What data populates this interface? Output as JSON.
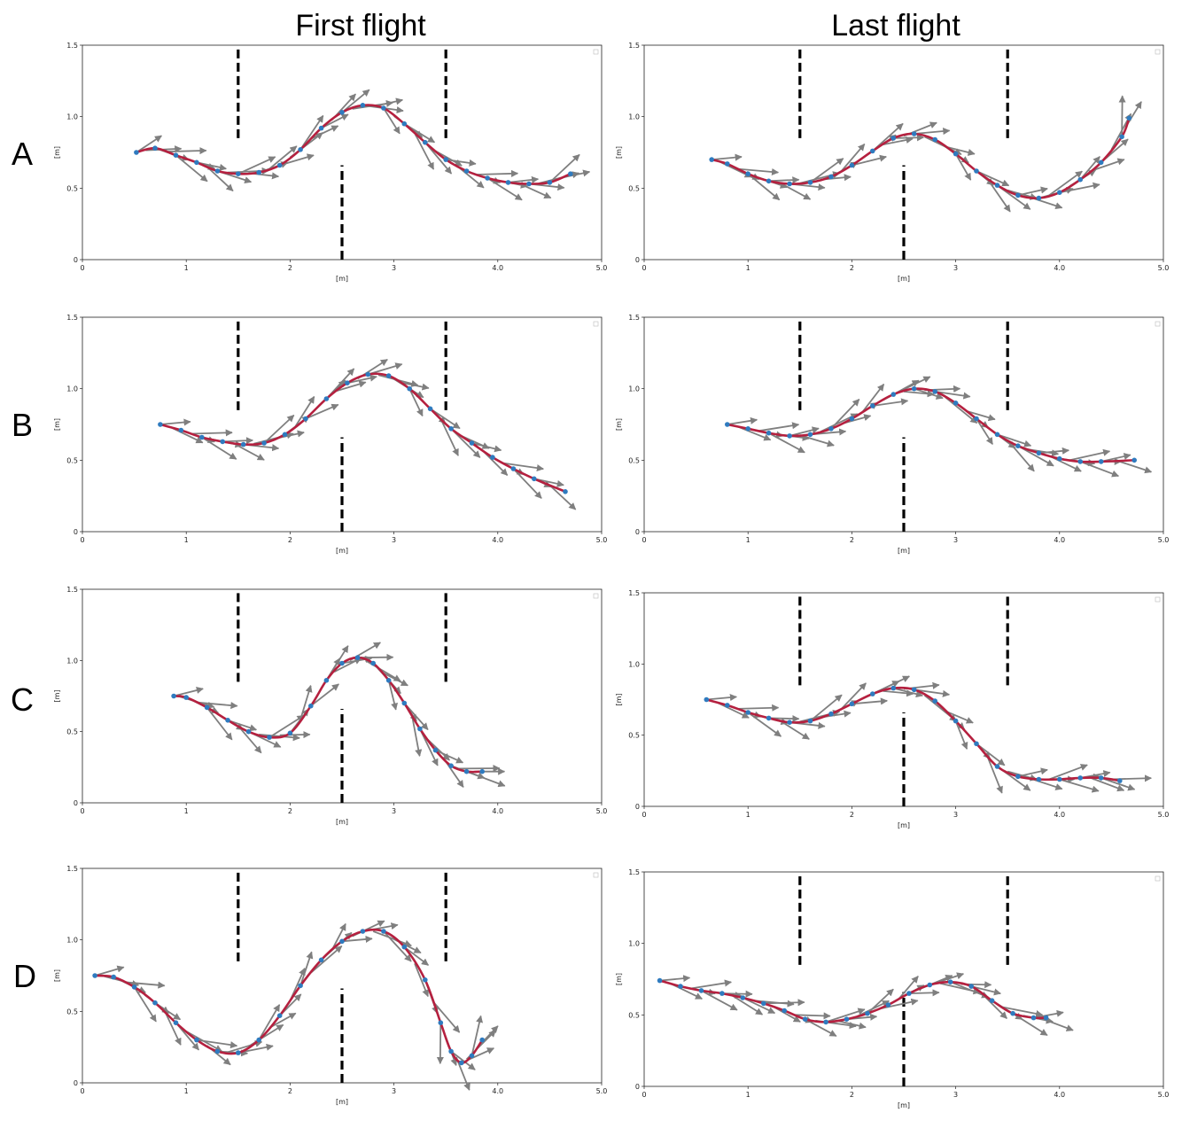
{
  "titles": {
    "col1": "First flight",
    "col2": "Last flight"
  },
  "rows": [
    "A",
    "B",
    "C",
    "D"
  ],
  "chart_data": [
    {
      "type": "line",
      "panel": "A - First flight",
      "xlabel": "[m]",
      "ylabel": "[m]",
      "xlim": [
        0,
        5.0
      ],
      "ylim": [
        0,
        1.5
      ],
      "xticks": [
        "0",
        "1",
        "2",
        "3",
        "4.0",
        "5.0"
      ],
      "yticks": [
        "0",
        "0.5",
        "1.0",
        "1.5"
      ],
      "obstacles": [
        {
          "x": 1.5,
          "y": [
            0.85,
            1.5
          ]
        },
        {
          "x": 2.5,
          "y": [
            0,
            0.66
          ]
        },
        {
          "x": 3.5,
          "y": [
            0.85,
            1.5
          ]
        }
      ],
      "trajectory": {
        "x": [
          0.52,
          0.7,
          0.9,
          1.1,
          1.3,
          1.5,
          1.7,
          1.9,
          2.1,
          2.3,
          2.5,
          2.7,
          2.9,
          3.1,
          3.3,
          3.5,
          3.7,
          3.9,
          4.1,
          4.3,
          4.5,
          4.7
        ],
        "y": [
          0.75,
          0.78,
          0.73,
          0.68,
          0.62,
          0.6,
          0.61,
          0.66,
          0.77,
          0.92,
          1.03,
          1.08,
          1.06,
          0.95,
          0.82,
          0.7,
          0.62,
          0.57,
          0.54,
          0.53,
          0.54,
          0.6
        ]
      }
    },
    {
      "type": "line",
      "panel": "A - Last flight",
      "xlabel": "[m]",
      "ylabel": "[m]",
      "xlim": [
        0,
        5.0
      ],
      "ylim": [
        0,
        1.5
      ],
      "xticks": [
        "0",
        "1",
        "2",
        "3",
        "4.0",
        "5.0"
      ],
      "yticks": [
        "0",
        "0.5",
        "1.0",
        "1.5"
      ],
      "obstacles": [
        {
          "x": 1.5,
          "y": [
            0.85,
            1.5
          ]
        },
        {
          "x": 2.5,
          "y": [
            0,
            0.66
          ]
        },
        {
          "x": 3.5,
          "y": [
            0.85,
            1.5
          ]
        }
      ],
      "trajectory": {
        "x": [
          0.65,
          0.8,
          1.0,
          1.2,
          1.4,
          1.6,
          1.8,
          2.0,
          2.2,
          2.4,
          2.6,
          2.8,
          3.0,
          3.2,
          3.4,
          3.6,
          3.8,
          4.0,
          4.2,
          4.4,
          4.6,
          4.67
        ],
        "y": [
          0.7,
          0.67,
          0.6,
          0.55,
          0.53,
          0.54,
          0.58,
          0.66,
          0.76,
          0.85,
          0.88,
          0.84,
          0.74,
          0.62,
          0.52,
          0.45,
          0.43,
          0.47,
          0.56,
          0.68,
          0.86,
          0.99
        ]
      }
    },
    {
      "type": "line",
      "panel": "B - First flight",
      "xlabel": "[m]",
      "ylabel": "[m]",
      "xlim": [
        0,
        5.0
      ],
      "ylim": [
        0,
        1.5
      ],
      "xticks": [
        "0",
        "1",
        "2",
        "3",
        "4.0",
        "5.0"
      ],
      "yticks": [
        "0",
        "0.5",
        "1.0",
        "1.5"
      ],
      "obstacles": [
        {
          "x": 1.5,
          "y": [
            0.85,
            1.5
          ]
        },
        {
          "x": 2.5,
          "y": [
            0,
            0.66
          ]
        },
        {
          "x": 3.5,
          "y": [
            0.85,
            1.5
          ]
        }
      ],
      "trajectory": {
        "x": [
          0.75,
          0.95,
          1.15,
          1.35,
          1.55,
          1.75,
          1.95,
          2.15,
          2.35,
          2.55,
          2.75,
          2.95,
          3.15,
          3.35,
          3.55,
          3.75,
          3.95,
          4.15,
          4.35,
          4.65
        ],
        "y": [
          0.75,
          0.71,
          0.66,
          0.63,
          0.61,
          0.62,
          0.68,
          0.79,
          0.93,
          1.04,
          1.1,
          1.09,
          1.0,
          0.86,
          0.72,
          0.62,
          0.52,
          0.44,
          0.37,
          0.28
        ]
      }
    },
    {
      "type": "line",
      "panel": "B - Last flight",
      "xlabel": "[m]",
      "ylabel": "[m]",
      "xlim": [
        0,
        5.0
      ],
      "ylim": [
        0,
        1.5
      ],
      "xticks": [
        "0",
        "1",
        "2",
        "3",
        "4.0",
        "5.0"
      ],
      "yticks": [
        "0",
        "0.5",
        "1.0",
        "1.5"
      ],
      "obstacles": [
        {
          "x": 1.5,
          "y": [
            0.85,
            1.5
          ]
        },
        {
          "x": 2.5,
          "y": [
            0,
            0.66
          ]
        },
        {
          "x": 3.5,
          "y": [
            0.85,
            1.5
          ]
        }
      ],
      "trajectory": {
        "x": [
          0.8,
          1.0,
          1.2,
          1.4,
          1.6,
          1.8,
          2.0,
          2.2,
          2.4,
          2.6,
          2.8,
          3.0,
          3.2,
          3.4,
          3.6,
          3.8,
          4.0,
          4.2,
          4.4,
          4.72
        ],
        "y": [
          0.75,
          0.72,
          0.69,
          0.67,
          0.68,
          0.72,
          0.79,
          0.88,
          0.96,
          1.0,
          0.98,
          0.9,
          0.79,
          0.68,
          0.6,
          0.55,
          0.51,
          0.49,
          0.49,
          0.5
        ]
      }
    },
    {
      "type": "line",
      "panel": "C - First flight",
      "xlabel": "[m]",
      "ylabel": "[m]",
      "xlim": [
        0,
        5.0
      ],
      "ylim": [
        0,
        1.5
      ],
      "xticks": [
        "0",
        "1",
        "2",
        "3",
        "4.0",
        "5.0"
      ],
      "yticks": [
        "0",
        "0.5",
        "1.0",
        "1.5"
      ],
      "obstacles": [
        {
          "x": 1.5,
          "y": [
            0.85,
            1.5
          ]
        },
        {
          "x": 2.5,
          "y": [
            0,
            0.66
          ]
        },
        {
          "x": 3.5,
          "y": [
            0.85,
            1.5
          ]
        }
      ],
      "trajectory": {
        "x": [
          0.88,
          1.0,
          1.2,
          1.4,
          1.6,
          1.8,
          2.0,
          2.2,
          2.35,
          2.5,
          2.65,
          2.8,
          2.95,
          3.1,
          3.25,
          3.4,
          3.55,
          3.7,
          3.85
        ],
        "y": [
          0.75,
          0.74,
          0.67,
          0.58,
          0.5,
          0.46,
          0.49,
          0.68,
          0.86,
          0.98,
          1.02,
          0.98,
          0.86,
          0.7,
          0.52,
          0.37,
          0.26,
          0.22,
          0.22
        ]
      }
    },
    {
      "type": "line",
      "panel": "C - Last flight",
      "xlabel": "[m]",
      "ylabel": "[m]",
      "xlim": [
        0,
        5.0
      ],
      "ylim": [
        0,
        1.5
      ],
      "xticks": [
        "0",
        "1",
        "2",
        "3",
        "4.0",
        "5.0"
      ],
      "yticks": [
        "0",
        "0.5",
        "1.0",
        "1.5"
      ],
      "obstacles": [
        {
          "x": 1.5,
          "y": [
            0.85,
            1.5
          ]
        },
        {
          "x": 2.5,
          "y": [
            0,
            0.66
          ]
        },
        {
          "x": 3.5,
          "y": [
            0.85,
            1.5
          ]
        }
      ],
      "trajectory": {
        "x": [
          0.6,
          0.8,
          1.0,
          1.2,
          1.4,
          1.6,
          1.8,
          2.0,
          2.2,
          2.4,
          2.6,
          2.8,
          3.0,
          3.2,
          3.4,
          3.6,
          3.8,
          4.0,
          4.2,
          4.4,
          4.58
        ],
        "y": [
          0.75,
          0.71,
          0.66,
          0.62,
          0.59,
          0.6,
          0.65,
          0.72,
          0.79,
          0.83,
          0.82,
          0.74,
          0.6,
          0.44,
          0.28,
          0.21,
          0.19,
          0.19,
          0.2,
          0.2,
          0.18
        ]
      }
    },
    {
      "type": "line",
      "panel": "D - First flight",
      "xlabel": "[m]",
      "ylabel": "[m]",
      "xlim": [
        0,
        5.0
      ],
      "ylim": [
        0,
        1.5
      ],
      "xticks": [
        "0",
        "1",
        "2",
        "3",
        "4.0",
        "5.0"
      ],
      "yticks": [
        "0",
        "0.5",
        "1.0",
        "1.5"
      ],
      "obstacles": [
        {
          "x": 1.5,
          "y": [
            0.85,
            1.5
          ]
        },
        {
          "x": 2.5,
          "y": [
            0,
            0.66
          ]
        },
        {
          "x": 3.5,
          "y": [
            0.85,
            1.5
          ]
        }
      ],
      "trajectory": {
        "x": [
          0.12,
          0.3,
          0.5,
          0.7,
          0.9,
          1.1,
          1.3,
          1.5,
          1.7,
          1.9,
          2.1,
          2.3,
          2.5,
          2.7,
          2.9,
          3.1,
          3.3,
          3.45,
          3.55,
          3.65,
          3.75,
          3.85
        ],
        "y": [
          0.75,
          0.74,
          0.67,
          0.56,
          0.42,
          0.3,
          0.22,
          0.21,
          0.3,
          0.47,
          0.68,
          0.86,
          0.99,
          1.06,
          1.06,
          0.95,
          0.72,
          0.42,
          0.22,
          0.14,
          0.19,
          0.3
        ]
      }
    },
    {
      "type": "line",
      "panel": "D - Last flight",
      "xlabel": "[m]",
      "ylabel": "[m]",
      "xlim": [
        0,
        5.0
      ],
      "ylim": [
        0,
        1.5
      ],
      "xticks": [
        "0",
        "1",
        "2",
        "3",
        "4.0",
        "5.0"
      ],
      "yticks": [
        "0",
        "0.5",
        "1.0",
        "1.5"
      ],
      "obstacles": [
        {
          "x": 1.5,
          "y": [
            0.85,
            1.5
          ]
        },
        {
          "x": 2.5,
          "y": [
            0,
            0.66
          ]
        },
        {
          "x": 3.5,
          "y": [
            0.85,
            1.5
          ]
        }
      ],
      "trajectory": {
        "x": [
          0.15,
          0.35,
          0.55,
          0.75,
          0.95,
          1.15,
          1.35,
          1.55,
          1.75,
          1.95,
          2.15,
          2.35,
          2.55,
          2.75,
          2.95,
          3.15,
          3.35,
          3.55,
          3.75,
          3.87
        ],
        "y": [
          0.74,
          0.7,
          0.67,
          0.65,
          0.62,
          0.58,
          0.53,
          0.47,
          0.45,
          0.47,
          0.51,
          0.57,
          0.65,
          0.71,
          0.73,
          0.7,
          0.6,
          0.51,
          0.48,
          0.48
        ]
      }
    }
  ]
}
